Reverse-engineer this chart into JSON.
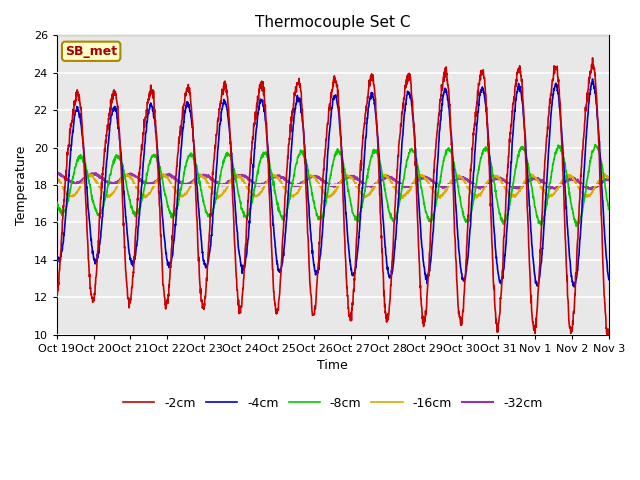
{
  "title": "Thermocouple Set C",
  "xlabel": "Time",
  "ylabel": "Temperature",
  "ylim": [
    10,
    26
  ],
  "yticks": [
    10,
    12,
    14,
    16,
    18,
    20,
    22,
    24,
    26
  ],
  "annotation": "SB_met",
  "bg_color": "#e8e8e8",
  "fig_color": "#ffffff",
  "line_colors": {
    "-2cm": "#cc0000",
    "-4cm": "#0000cc",
    "-8cm": "#00cc00",
    "-16cm": "#ddaa00",
    "-32cm": "#9933aa"
  },
  "x_tick_labels": [
    "Oct 19",
    "Oct 20",
    "Oct 21",
    "Oct 22",
    "Oct 23",
    "Oct 24",
    "Oct 25",
    "Oct 26",
    "Oct 27",
    "Oct 28",
    "Oct 29",
    "Oct 30",
    "Oct 31",
    "Nov 1",
    "Nov 2",
    "Nov 3"
  ],
  "n_points": 2000
}
